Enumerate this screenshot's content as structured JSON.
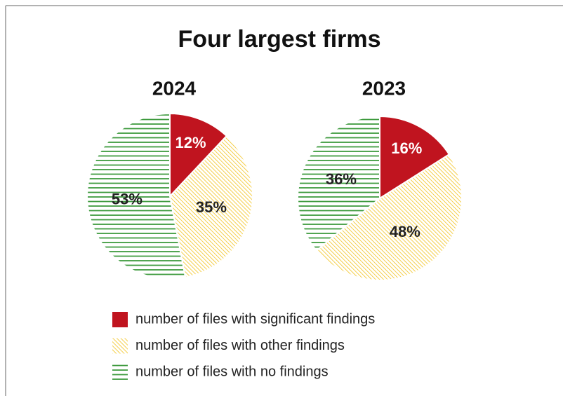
{
  "title": "Four largest firms",
  "chart_data": [
    {
      "type": "pie",
      "title": "2024",
      "categories": [
        "number of files with significant findings",
        "number of files with other findings",
        "number of files with no findings"
      ],
      "values": [
        12,
        35,
        53
      ],
      "value_labels": [
        "12%",
        "35%",
        "53%"
      ],
      "colors": [
        "#c0141f",
        "#f2c21b",
        "#3f9b3f"
      ],
      "patterns": [
        "solid",
        "diagonal",
        "horizontal"
      ]
    },
    {
      "type": "pie",
      "title": "2023",
      "categories": [
        "number of files with significant findings",
        "number of files with other findings",
        "number of files with no findings"
      ],
      "values": [
        16,
        48,
        36
      ],
      "value_labels": [
        "16%",
        "48%",
        "36%"
      ],
      "colors": [
        "#c0141f",
        "#f2c21b",
        "#3f9b3f"
      ],
      "patterns": [
        "solid",
        "diagonal",
        "horizontal"
      ]
    }
  ]
}
